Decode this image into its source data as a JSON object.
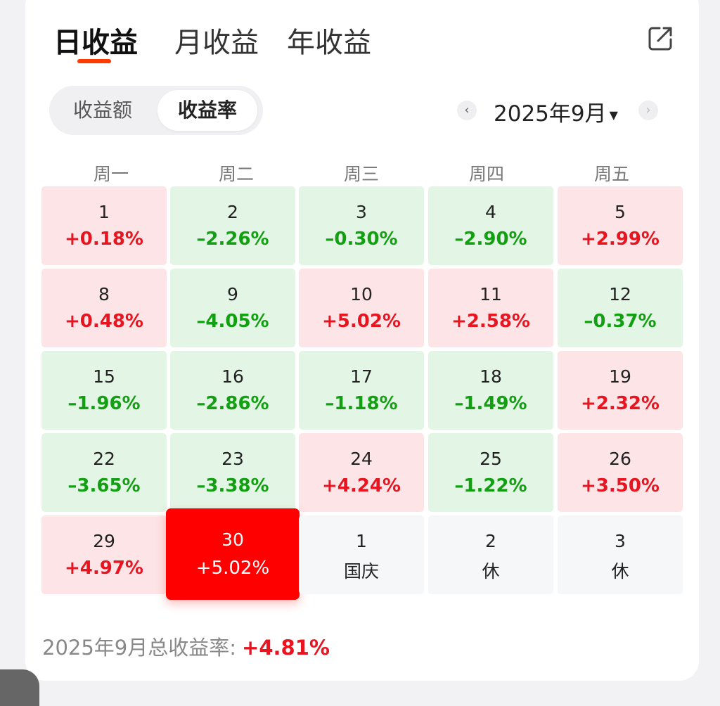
{
  "tabs": [
    {
      "label": "日收益",
      "active": true
    },
    {
      "label": "月收益",
      "active": false
    },
    {
      "label": "年收益",
      "active": false
    }
  ],
  "segment": {
    "options": [
      "收益额",
      "收益率"
    ],
    "selected": "收益率"
  },
  "month_picker": {
    "label": "2025年9月"
  },
  "weekdays": [
    "周一",
    "周二",
    "周三",
    "周四",
    "周五"
  ],
  "weeks": [
    [
      {
        "day": "1",
        "value": "+0.18%",
        "type": "pos"
      },
      {
        "day": "2",
        "value": "–2.26%",
        "type": "neg"
      },
      {
        "day": "3",
        "value": "–0.30%",
        "type": "neg"
      },
      {
        "day": "4",
        "value": "–2.90%",
        "type": "neg"
      },
      {
        "day": "5",
        "value": "+2.99%",
        "type": "pos"
      }
    ],
    [
      {
        "day": "8",
        "value": "+0.48%",
        "type": "pos"
      },
      {
        "day": "9",
        "value": "–4.05%",
        "type": "neg"
      },
      {
        "day": "10",
        "value": "+5.02%",
        "type": "pos"
      },
      {
        "day": "11",
        "value": "+2.58%",
        "type": "pos"
      },
      {
        "day": "12",
        "value": "–0.37%",
        "type": "neg"
      }
    ],
    [
      {
        "day": "15",
        "value": "–1.96%",
        "type": "neg"
      },
      {
        "day": "16",
        "value": "–2.86%",
        "type": "neg"
      },
      {
        "day": "17",
        "value": "–1.18%",
        "type": "neg"
      },
      {
        "day": "18",
        "value": "–1.49%",
        "type": "neg"
      },
      {
        "day": "19",
        "value": "+2.32%",
        "type": "pos"
      }
    ],
    [
      {
        "day": "22",
        "value": "–3.65%",
        "type": "neg"
      },
      {
        "day": "23",
        "value": "–3.38%",
        "type": "neg"
      },
      {
        "day": "24",
        "value": "+4.24%",
        "type": "pos"
      },
      {
        "day": "25",
        "value": "–1.22%",
        "type": "neg"
      },
      {
        "day": "26",
        "value": "+3.50%",
        "type": "pos"
      }
    ],
    [
      {
        "day": "29",
        "value": "+4.97%",
        "type": "pos"
      },
      {
        "day": "30",
        "value": "+5.02%",
        "type": "sel"
      },
      {
        "day": "1",
        "value": "国庆",
        "type": "off"
      },
      {
        "day": "2",
        "value": "休",
        "type": "off"
      },
      {
        "day": "3",
        "value": "休",
        "type": "off"
      }
    ]
  ],
  "summary": {
    "label": "2025年9月总收益率:",
    "value": "+4.81%"
  },
  "colors": {
    "up": "#e8141f",
    "down": "#12a012",
    "up_bg": "#fde4e6",
    "down_bg": "#e3f5e4",
    "accent": "#ff3b00",
    "selected": "#ff0000"
  },
  "icons": {
    "share": "share-icon",
    "prev": "chevron-left-icon",
    "next": "chevron-right-icon",
    "dropdown": "caret-down-icon"
  }
}
